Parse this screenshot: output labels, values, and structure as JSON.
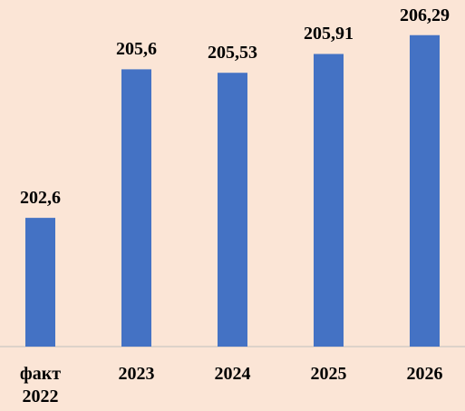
{
  "chart_data": {
    "type": "bar",
    "categories": [
      "факт 2022",
      "2023",
      "2024",
      "2025",
      "2026"
    ],
    "values": [
      202.6,
      205.6,
      205.53,
      205.91,
      206.29
    ],
    "value_labels": [
      "202,6",
      "205,6",
      "205,53",
      "205,91",
      "206,29"
    ],
    "color": "#4472c4",
    "ylim": [
      200,
      207
    ]
  }
}
